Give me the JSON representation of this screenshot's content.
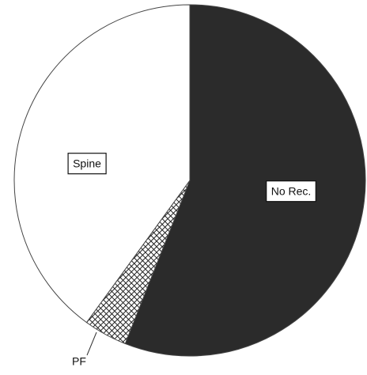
{
  "chart_data": {
    "type": "pie",
    "categories": [
      "No Rec.",
      "PF",
      "Spine"
    ],
    "values": [
      56,
      4,
      40
    ],
    "colors": [
      "#2b2b2b",
      "#ffffff",
      "#ffffff"
    ],
    "hatch": [
      false,
      true,
      false
    ]
  }
}
